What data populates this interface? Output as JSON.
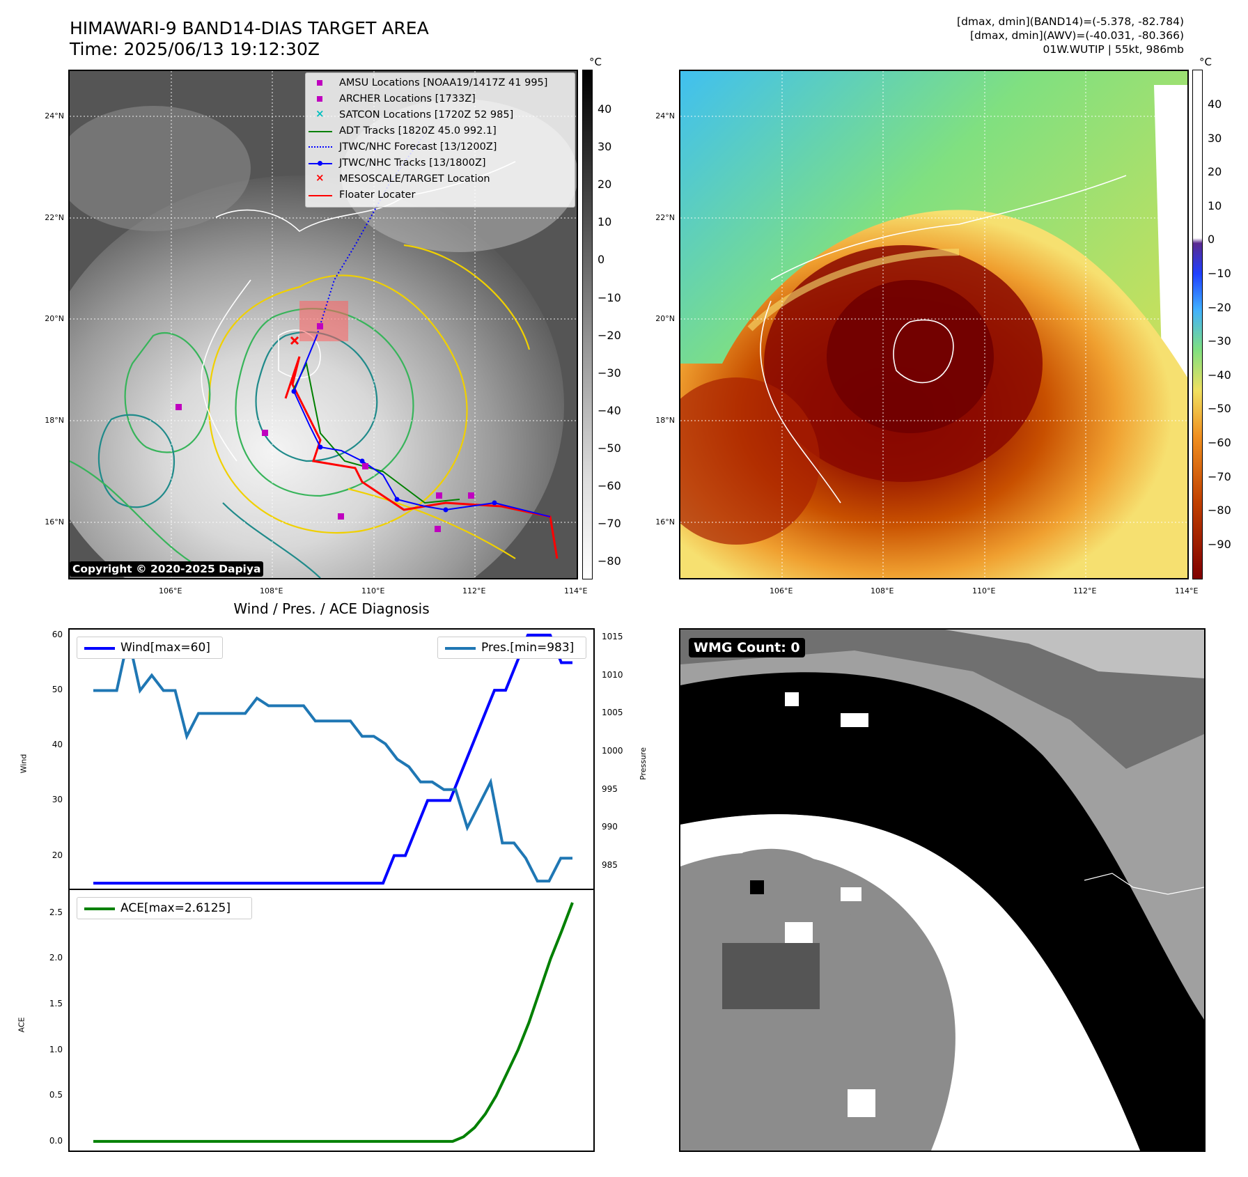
{
  "header": {
    "title_line1": "HIMAWARI-9 BAND14-DIAS TARGET AREA",
    "title_line2": "Time: 2025/06/13 19:12:30Z",
    "info_line1": "[dmax, dmin](BAND14)=(-5.378, -82.784)",
    "info_line2": "[dmax, dmin](AWV)=(-40.031, -80.366)",
    "info_line3": "01W.WUTIP | 55kt, 986mb"
  },
  "map_axes": {
    "lat_ticks": [
      "24°N",
      "22°N",
      "20°N",
      "18°N",
      "16°N"
    ],
    "lon_ticks": [
      "106°E",
      "108°E",
      "110°E",
      "112°E",
      "114°E"
    ]
  },
  "ir_map": {
    "colorbar_unit": "°C",
    "colorbar_ticks": [
      "40",
      "30",
      "20",
      "10",
      "0",
      "−10",
      "−20",
      "−30",
      "−40",
      "−50",
      "−60",
      "−70",
      "−80"
    ],
    "copyright": "Copyright © 2020-2025 Dapiya",
    "legend": [
      {
        "label": "AMSU Locations [NOAA19/1417Z 41 995]",
        "marker": "square",
        "color": "#bf00bf"
      },
      {
        "label": "ARCHER Locations [1733Z]",
        "marker": "square",
        "color": "#bf00bf"
      },
      {
        "label": "SATCON Locations [1720Z 52 985]",
        "marker": "x",
        "color": "#00bfbf"
      },
      {
        "label": "ADT Tracks [1820Z 45.0 992.1]",
        "marker": "line",
        "color": "#008000"
      },
      {
        "label": "JTWC/NHC Forecast [13/1200Z]",
        "marker": "dotted",
        "color": "#0000ff"
      },
      {
        "label": "JTWC/NHC Tracks [13/1800Z]",
        "marker": "line-dot",
        "color": "#0000ff"
      },
      {
        "label": "MESOSCALE/TARGET Location",
        "marker": "x",
        "color": "#ff0000"
      },
      {
        "label": "Floater Locater",
        "marker": "line",
        "color": "#ff0000"
      }
    ]
  },
  "awv_map": {
    "colorbar_unit": "°C",
    "colorbar_ticks": [
      "40",
      "30",
      "20",
      "10",
      "0",
      "−10",
      "−20",
      "−30",
      "−40",
      "−50",
      "−60",
      "−70",
      "−80",
      "−90"
    ]
  },
  "diagnosis": {
    "title": "Wind / Pres. / ACE Diagnosis",
    "wind_ylabel": "Wind",
    "pres_ylabel": "Pressure",
    "ace_ylabel": "ACE",
    "wind_legend": "Wind[max=60]",
    "pres_legend": "Pres.[min=983]",
    "ace_legend": "ACE[max=2.6125]",
    "wind_ticks": [
      "60",
      "50",
      "40",
      "30",
      "20"
    ],
    "pres_ticks": [
      "1015",
      "1010",
      "1005",
      "1000",
      "995",
      "990",
      "985"
    ],
    "ace_ticks": [
      "2.5",
      "2.0",
      "1.5",
      "1.0",
      "0.5",
      "0.0"
    ]
  },
  "wmg": {
    "label": "WMG Count: 0"
  },
  "chart_data": [
    {
      "type": "line",
      "panel": "wind",
      "ylim": [
        14,
        61
      ],
      "series": [
        {
          "name": "Wind[max=60]",
          "color": "#0000ff",
          "values": [
            15,
            15,
            15,
            15,
            15,
            15,
            15,
            15,
            15,
            15,
            15,
            15,
            15,
            15,
            15,
            15,
            15,
            15,
            15,
            15,
            15,
            15,
            15,
            15,
            15,
            15,
            15,
            20,
            20,
            25,
            30,
            30,
            30,
            35,
            40,
            45,
            50,
            50,
            55,
            60,
            60,
            60,
            55,
            55
          ]
        }
      ]
    },
    {
      "type": "line",
      "panel": "pressure",
      "ylim": [
        982,
        1016
      ],
      "series": [
        {
          "name": "Pres.[min=983]",
          "color": "#1f77b4",
          "values": [
            1008,
            1008,
            1008,
            1015,
            1008,
            1010,
            1008,
            1008,
            1002,
            1005,
            1005,
            1005,
            1005,
            1005,
            1007,
            1006,
            1006,
            1006,
            1006,
            1004,
            1004,
            1004,
            1004,
            1002,
            1002,
            1001,
            999,
            998,
            996,
            996,
            995,
            995,
            990,
            993,
            996,
            988,
            988,
            986,
            983,
            983,
            986,
            986
          ]
        }
      ]
    },
    {
      "type": "line",
      "panel": "ace",
      "ylim": [
        -0.1,
        2.75
      ],
      "series": [
        {
          "name": "ACE[max=2.6125]",
          "color": "#008000",
          "values": [
            0,
            0,
            0,
            0,
            0,
            0,
            0,
            0,
            0,
            0,
            0,
            0,
            0,
            0,
            0,
            0,
            0,
            0,
            0,
            0,
            0,
            0,
            0,
            0,
            0,
            0,
            0,
            0,
            0,
            0,
            0,
            0,
            0,
            0,
            0.05,
            0.15,
            0.3,
            0.5,
            0.75,
            1.0,
            1.3,
            1.65,
            2.0,
            2.3,
            2.6125
          ]
        }
      ]
    }
  ]
}
